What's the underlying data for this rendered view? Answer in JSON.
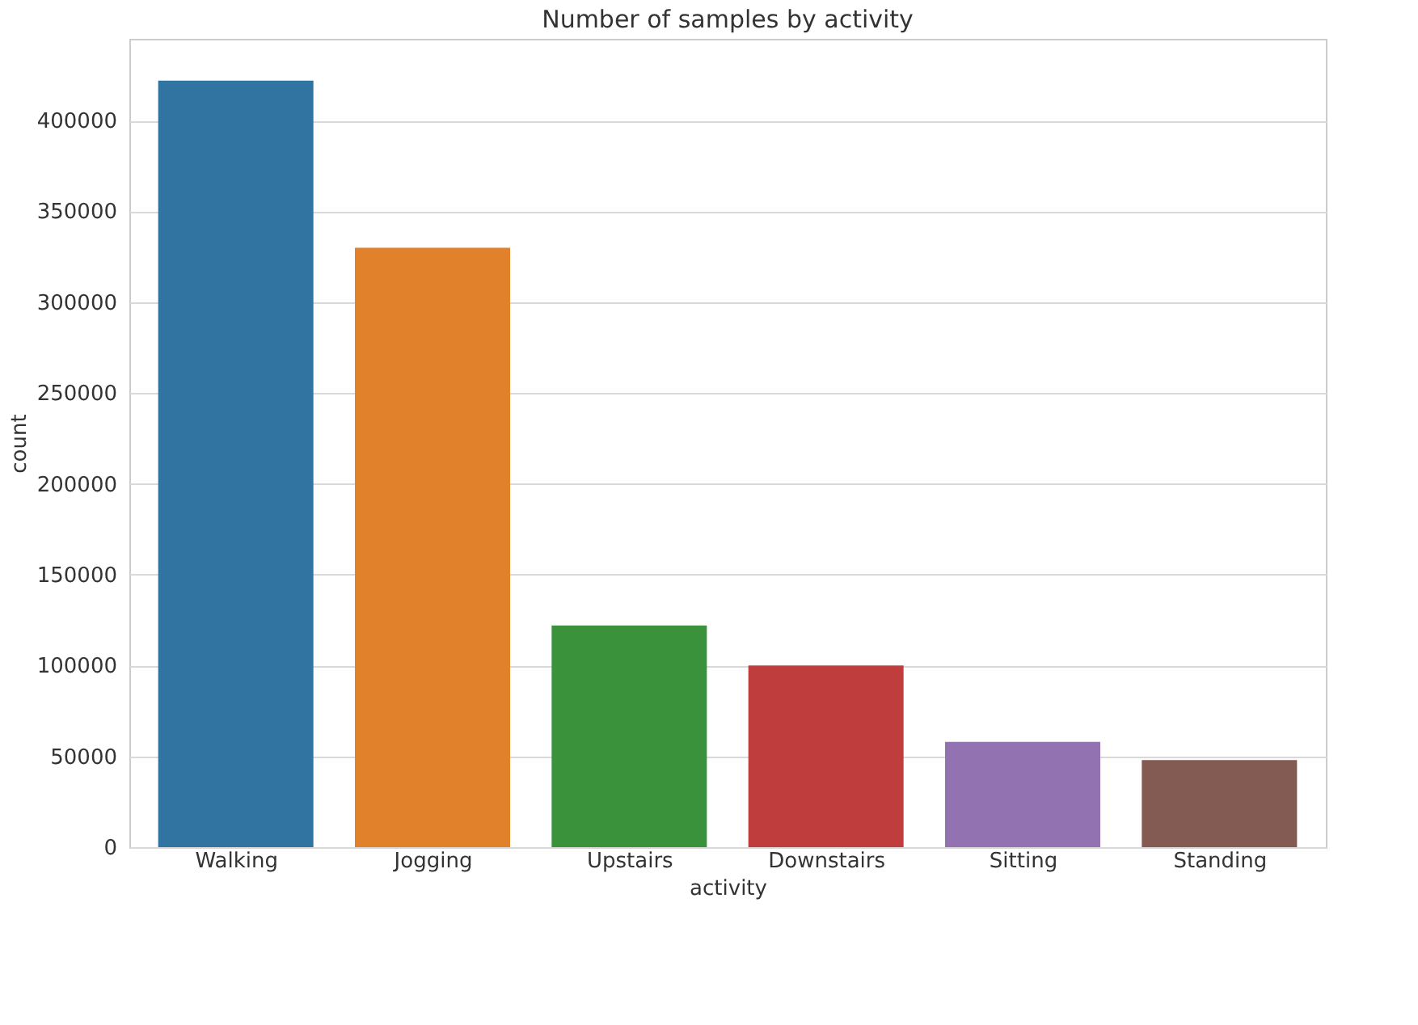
{
  "chart_data": {
    "type": "bar",
    "title": "Number of samples by activity",
    "xlabel": "activity",
    "ylabel": "count",
    "categories": [
      "Walking",
      "Jogging",
      "Upstairs",
      "Downstairs",
      "Sitting",
      "Standing"
    ],
    "values": [
      422000,
      330000,
      122000,
      100000,
      58000,
      48000
    ],
    "colors": [
      "#3274a1",
      "#e1812c",
      "#3a923a",
      "#c03d3e",
      "#9372b2",
      "#845b53"
    ],
    "ylim": [
      0,
      445000
    ],
    "yticks": [
      0,
      50000,
      100000,
      150000,
      200000,
      250000,
      300000,
      350000,
      400000
    ],
    "grid": "y"
  }
}
